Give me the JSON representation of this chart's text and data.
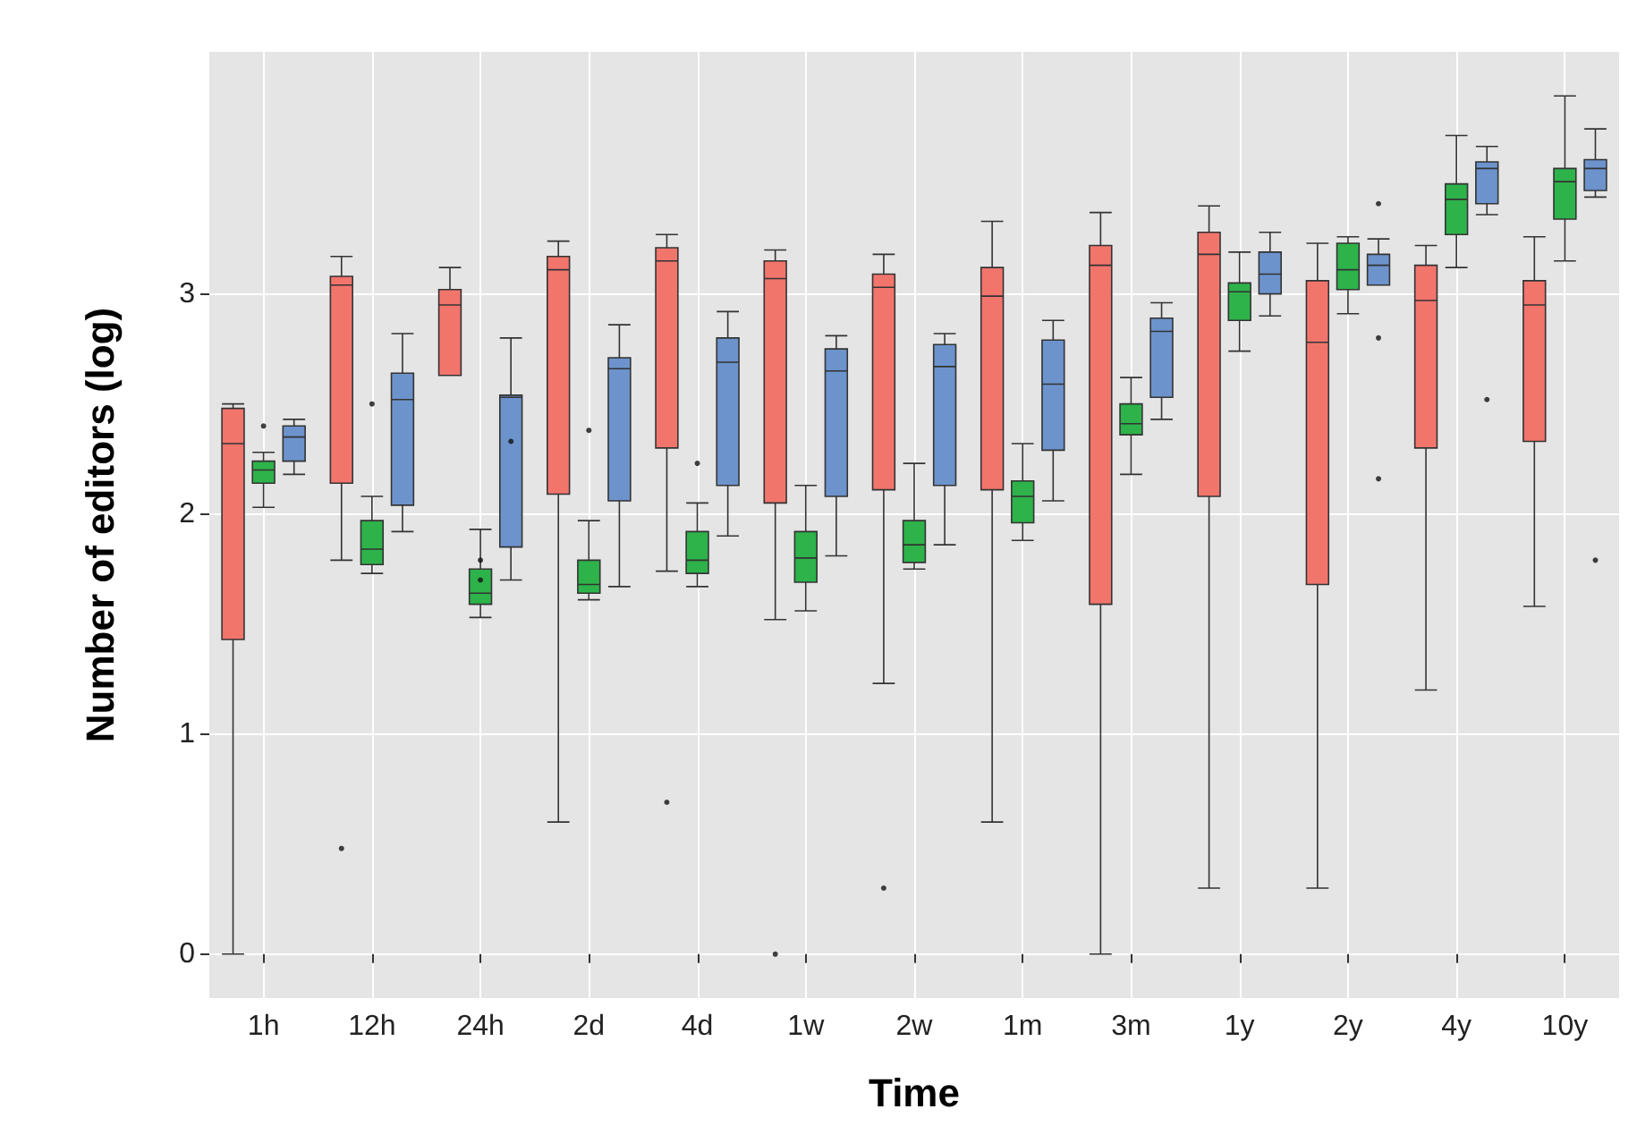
{
  "chart_data": {
    "type": "box",
    "xlabel": "Time",
    "ylabel": "Number of editors (log)",
    "categories": [
      "1h",
      "12h",
      "24h",
      "2d",
      "4d",
      "1w",
      "2w",
      "1m",
      "3m",
      "1y",
      "2y",
      "4y",
      "10y"
    ],
    "ylim": [
      -0.2,
      4.1
    ],
    "yticks": [
      0,
      1,
      2,
      3
    ],
    "grid": true,
    "series": [
      {
        "color": "#f2756c",
        "boxes": [
          {
            "low": 0,
            "q1": 1.43,
            "median": 2.32,
            "q3": 2.48,
            "high": 2.5
          },
          {
            "low": 1.79,
            "q1": 2.14,
            "median": 3.04,
            "q3": 3.08,
            "high": 3.17,
            "outliers": [
              0.48
            ]
          },
          {
            "low": 2.63,
            "q1": 2.63,
            "median": 2.95,
            "q3": 3.02,
            "high": 3.12
          },
          {
            "low": 0.6,
            "q1": 2.09,
            "median": 3.11,
            "q3": 3.17,
            "high": 3.24
          },
          {
            "low": 1.74,
            "q1": 2.3,
            "median": 3.15,
            "q3": 3.21,
            "high": 3.27,
            "outliers": [
              0.69
            ]
          },
          {
            "low": 1.52,
            "q1": 2.05,
            "median": 3.07,
            "q3": 3.15,
            "high": 3.2,
            "outliers": [
              0
            ]
          },
          {
            "low": 1.23,
            "q1": 2.11,
            "median": 3.03,
            "q3": 3.09,
            "high": 3.18,
            "outliers": [
              0.3
            ]
          },
          {
            "low": 0.6,
            "q1": 2.11,
            "median": 2.99,
            "q3": 3.12,
            "high": 3.33
          },
          {
            "low": 0,
            "q1": 1.59,
            "median": 3.13,
            "q3": 3.22,
            "high": 3.37
          },
          {
            "low": 0.3,
            "q1": 2.08,
            "median": 3.18,
            "q3": 3.28,
            "high": 3.4
          },
          {
            "low": 0.3,
            "q1": 1.68,
            "median": 2.78,
            "q3": 3.06,
            "high": 3.23
          },
          {
            "low": 1.2,
            "q1": 2.3,
            "median": 2.97,
            "q3": 3.13,
            "high": 3.22
          },
          {
            "low": 1.58,
            "q1": 2.33,
            "median": 2.95,
            "q3": 3.06,
            "high": 3.26
          }
        ]
      },
      {
        "color": "#2db34a",
        "boxes": [
          {
            "low": 2.03,
            "q1": 2.14,
            "median": 2.2,
            "q3": 2.24,
            "high": 2.28,
            "outliers": [
              2.4
            ]
          },
          {
            "low": 1.73,
            "q1": 1.77,
            "median": 1.84,
            "q3": 1.97,
            "high": 2.08,
            "outliers": [
              2.5
            ]
          },
          {
            "low": 1.53,
            "q1": 1.59,
            "median": 1.64,
            "q3": 1.75,
            "high": 1.93,
            "outliers": [
              1.79,
              1.7
            ]
          },
          {
            "low": 1.61,
            "q1": 1.64,
            "median": 1.68,
            "q3": 1.79,
            "high": 1.97,
            "outliers": [
              2.38
            ]
          },
          {
            "low": 1.67,
            "q1": 1.73,
            "median": 1.79,
            "q3": 1.92,
            "high": 2.05,
            "outliers": [
              2.23
            ]
          },
          {
            "low": 1.56,
            "q1": 1.69,
            "median": 1.8,
            "q3": 1.92,
            "high": 2.13
          },
          {
            "low": 1.75,
            "q1": 1.78,
            "median": 1.86,
            "q3": 1.97,
            "high": 2.23
          },
          {
            "low": 1.88,
            "q1": 1.96,
            "median": 2.08,
            "q3": 2.15,
            "high": 2.32
          },
          {
            "low": 2.18,
            "q1": 2.36,
            "median": 2.41,
            "q3": 2.5,
            "high": 2.62
          },
          {
            "low": 2.74,
            "q1": 2.88,
            "median": 3.01,
            "q3": 3.05,
            "high": 3.19
          },
          {
            "low": 2.91,
            "q1": 3.02,
            "median": 3.11,
            "q3": 3.23,
            "high": 3.26
          },
          {
            "low": 3.12,
            "q1": 3.27,
            "median": 3.43,
            "q3": 3.5,
            "high": 3.72
          },
          {
            "low": 3.15,
            "q1": 3.34,
            "median": 3.51,
            "q3": 3.57,
            "high": 3.9
          }
        ]
      },
      {
        "color": "#6c93cc",
        "boxes": [
          {
            "low": 2.18,
            "q1": 2.24,
            "median": 2.35,
            "q3": 2.4,
            "high": 2.43
          },
          {
            "low": 1.92,
            "q1": 2.04,
            "median": 2.52,
            "q3": 2.64,
            "high": 2.82
          },
          {
            "low": 1.7,
            "q1": 1.85,
            "median": 2.53,
            "q3": 2.54,
            "high": 2.8,
            "outliers": [
              2.33
            ]
          },
          {
            "low": 1.67,
            "q1": 2.06,
            "median": 2.66,
            "q3": 2.71,
            "high": 2.86
          },
          {
            "low": 1.9,
            "q1": 2.13,
            "median": 2.69,
            "q3": 2.8,
            "high": 2.92
          },
          {
            "low": 1.81,
            "q1": 2.08,
            "median": 2.65,
            "q3": 2.75,
            "high": 2.81
          },
          {
            "low": 1.86,
            "q1": 2.13,
            "median": 2.67,
            "q3": 2.77,
            "high": 2.82
          },
          {
            "low": 2.06,
            "q1": 2.29,
            "median": 2.59,
            "q3": 2.79,
            "high": 2.88
          },
          {
            "low": 2.43,
            "q1": 2.53,
            "median": 2.83,
            "q3": 2.89,
            "high": 2.96
          },
          {
            "low": 2.9,
            "q1": 3,
            "median": 3.09,
            "q3": 3.19,
            "high": 3.28
          },
          {
            "low": 3.04,
            "q1": 3.04,
            "median": 3.13,
            "q3": 3.18,
            "high": 3.25,
            "outliers": [
              3.41,
              2.8,
              2.16
            ]
          },
          {
            "low": 3.36,
            "q1": 3.41,
            "median": 3.57,
            "q3": 3.6,
            "high": 3.67,
            "outliers": [
              2.52
            ]
          },
          {
            "low": 3.44,
            "q1": 3.47,
            "median": 3.57,
            "q3": 3.61,
            "high": 3.75,
            "outliers": [
              1.79
            ]
          }
        ]
      }
    ]
  }
}
